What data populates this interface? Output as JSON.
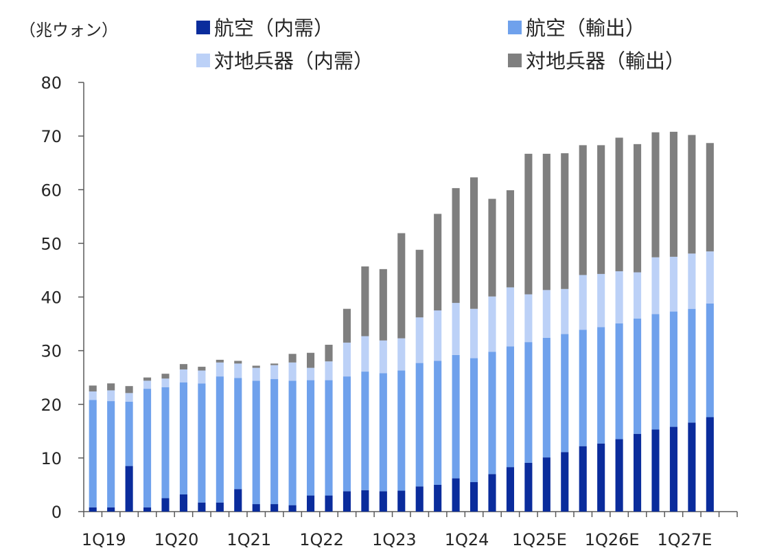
{
  "chart_data": {
    "type": "bar",
    "stacked": true,
    "unit_label": "（兆ウォン）",
    "ylim": [
      0,
      80
    ],
    "yticks": [
      0,
      10,
      20,
      30,
      40,
      50,
      60,
      70,
      80
    ],
    "categories": [
      "1Q19",
      "2Q19",
      "3Q19",
      "4Q19",
      "1Q20",
      "2Q20",
      "3Q20",
      "4Q20",
      "1Q21",
      "2Q21",
      "3Q21",
      "4Q21",
      "1Q22",
      "2Q22",
      "3Q22",
      "4Q22",
      "1Q23",
      "2Q23",
      "3Q23",
      "4Q23",
      "1Q24",
      "2Q24",
      "3Q24",
      "4Q24",
      "1Q25E",
      "2Q25E",
      "3Q25E",
      "4Q25E",
      "1Q26E",
      "2Q26E",
      "3Q26E",
      "4Q26E",
      "1Q27E",
      "2Q27E",
      "3Q27E",
      "4Q27E"
    ],
    "x_tick_labels": [
      {
        "index": 0,
        "label": "1Q19"
      },
      {
        "index": 4,
        "label": "1Q20"
      },
      {
        "index": 8,
        "label": "1Q21"
      },
      {
        "index": 12,
        "label": "1Q22"
      },
      {
        "index": 16,
        "label": "1Q23"
      },
      {
        "index": 20,
        "label": "1Q24"
      },
      {
        "index": 24,
        "label": "1Q25E"
      },
      {
        "index": 28,
        "label": "1Q26E"
      },
      {
        "index": 32,
        "label": "1Q27E"
      }
    ],
    "legend_position": "top",
    "series": [
      {
        "name": "航空（内需）",
        "color": "#0a2c9c",
        "values": [
          0.8,
          0.8,
          8.5,
          0.8,
          2.5,
          3.2,
          1.7,
          1.7,
          4.2,
          1.4,
          1.4,
          1.2,
          3.0,
          3.0,
          3.8,
          4.0,
          3.8,
          3.9,
          4.7,
          5.0,
          6.2,
          5.5,
          7.0,
          8.3,
          9.1,
          10.1,
          11.1,
          12.2,
          12.7,
          13.5,
          14.5,
          15.3,
          15.8,
          16.6,
          17.6,
          null
        ]
      },
      {
        "name": "航空（輸出）",
        "color": "#6fa1ec",
        "values": [
          20.0,
          19.8,
          12.0,
          22.1,
          20.7,
          20.9,
          22.2,
          23.5,
          20.7,
          23.0,
          23.3,
          23.2,
          21.5,
          21.5,
          21.4,
          22.1,
          22.0,
          22.4,
          23.0,
          23.1,
          23.0,
          23.1,
          22.8,
          22.5,
          22.5,
          22.3,
          22.0,
          21.7,
          21.7,
          21.6,
          21.5,
          21.5,
          21.5,
          21.2,
          21.2,
          null
        ]
      },
      {
        "name": "対地兵器（内需）",
        "color": "#bcd1f7",
        "values": [
          1.6,
          2.0,
          1.6,
          1.5,
          1.6,
          2.4,
          2.4,
          2.6,
          2.7,
          2.4,
          2.6,
          3.4,
          2.3,
          3.5,
          6.3,
          6.6,
          6.1,
          6.0,
          8.5,
          9.4,
          9.7,
          9.2,
          10.3,
          11.0,
          8.9,
          8.9,
          8.4,
          10.2,
          9.9,
          9.7,
          8.6,
          10.6,
          10.2,
          10.3,
          9.7,
          null
        ]
      },
      {
        "name": "対地兵器（輸出）",
        "color": "#7f7f7f",
        "values": [
          1.1,
          1.3,
          1.3,
          0.6,
          0.9,
          1.0,
          0.7,
          0.5,
          0.5,
          0.4,
          0.3,
          1.6,
          2.8,
          3.1,
          6.3,
          13.0,
          13.3,
          19.6,
          12.6,
          18.0,
          21.4,
          24.5,
          18.2,
          18.1,
          26.2,
          25.4,
          25.3,
          24.2,
          24.0,
          24.9,
          23.9,
          23.3,
          23.3,
          22.1,
          20.2,
          null
        ]
      }
    ]
  }
}
